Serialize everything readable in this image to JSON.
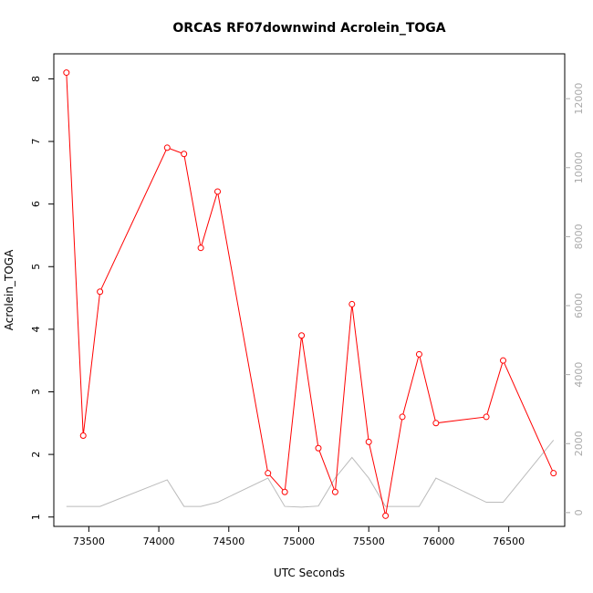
{
  "chart_data": {
    "type": "line",
    "title": "ORCAS RF07downwind Acrolein_TOGA",
    "xlabel": "UTC Seconds",
    "ylabel": "Acrolein_TOGA",
    "y2label": "",
    "xlim": [
      73250,
      76900
    ],
    "ylim": [
      0.85,
      8.4
    ],
    "y2lim": [
      -400,
      13300
    ],
    "x_ticks": [
      73500,
      74000,
      74500,
      75000,
      75500,
      76000,
      76500
    ],
    "y_ticks": [
      1,
      2,
      3,
      4,
      5,
      6,
      7,
      8
    ],
    "y2_ticks": [
      0,
      2000,
      4000,
      6000,
      8000,
      10000,
      12000
    ],
    "grid": false,
    "colors": {
      "primary": "#ff0000",
      "secondary": "#bbbbbb"
    },
    "series": [
      {
        "axis": "left",
        "marker": "open-circle",
        "x": [
          73340,
          73460,
          73580,
          74060,
          74180,
          74300,
          74420,
          74780,
          74900,
          75020,
          75140,
          75260,
          75380,
          75500,
          75620,
          75740,
          75860,
          75980,
          76340,
          76460,
          76820
        ],
        "y": [
          8.1,
          2.3,
          4.6,
          6.9,
          6.8,
          5.3,
          6.2,
          1.7,
          1.4,
          3.9,
          2.1,
          1.4,
          4.4,
          2.2,
          1.02,
          2.6,
          3.6,
          2.5,
          2.6,
          3.5,
          1.7
        ]
      },
      {
        "axis": "right",
        "marker": "none",
        "x": [
          73340,
          73580,
          74060,
          74180,
          74300,
          74420,
          74780,
          74900,
          75020,
          75140,
          75260,
          75380,
          75500,
          75620,
          75740,
          75860,
          75980,
          76340,
          76460,
          76820
        ],
        "y": [
          180,
          180,
          950,
          180,
          180,
          300,
          1000,
          180,
          160,
          190,
          1000,
          1600,
          1000,
          180,
          180,
          180,
          1000,
          300,
          300,
          2100
        ]
      }
    ]
  }
}
